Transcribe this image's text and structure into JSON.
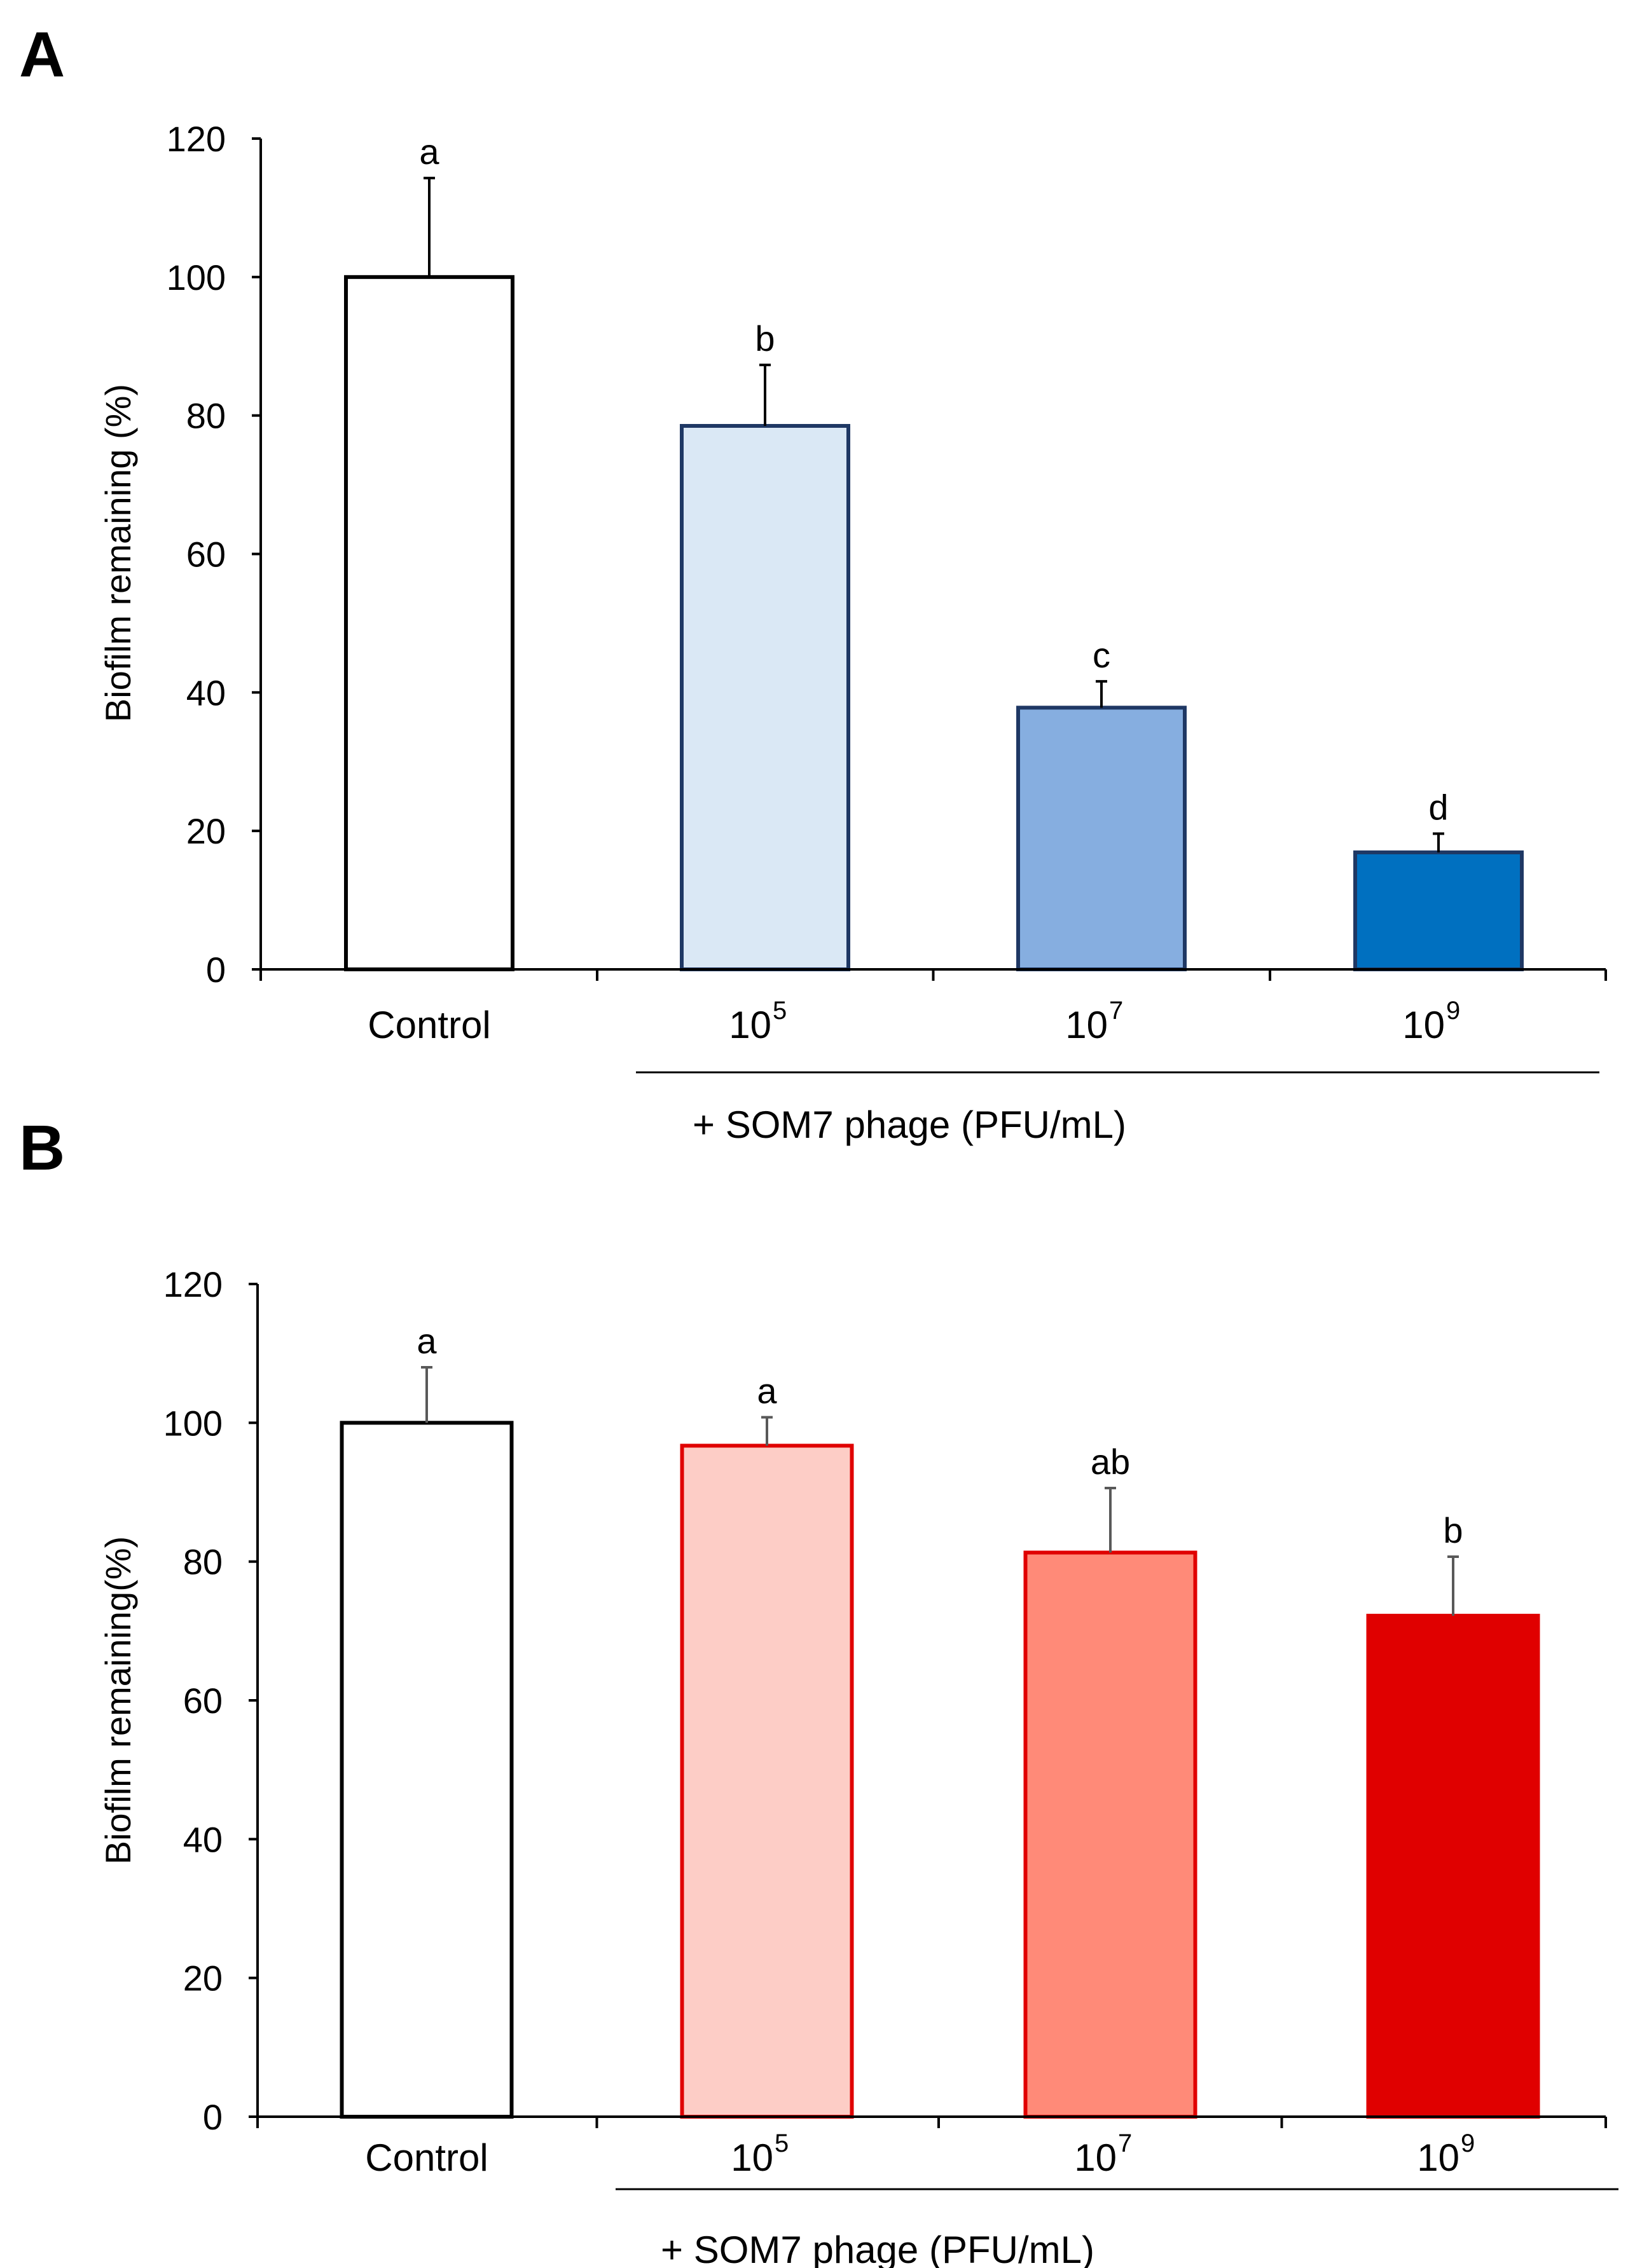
{
  "chart_data": [
    {
      "panel": "A",
      "type": "bar",
      "categories": [
        {
          "base": "Control",
          "sup": ""
        },
        {
          "base": "10",
          "sup": "5"
        },
        {
          "base": "10",
          "sup": "7"
        },
        {
          "base": "10",
          "sup": "9"
        }
      ],
      "values": [
        100,
        78.5,
        37.8,
        16.9
      ],
      "errors": [
        14.3,
        8.8,
        3.8,
        2.7
      ],
      "significance": [
        "a",
        "b",
        "c",
        "d"
      ],
      "colors": [
        "#ffffff",
        "#dae8f5",
        "#86aee0",
        "#0070c0"
      ],
      "edge_colors": [
        "#000000",
        "#1f3864",
        "#1f3864",
        "#1f3864"
      ],
      "error_color": "#000000",
      "ylabel": "Biofilm remaining (%)",
      "ylim": [
        0,
        120
      ],
      "yticks": [
        0,
        20,
        40,
        60,
        80,
        100,
        120
      ],
      "group_label": "+ SOM7 phage (PFU/mL)"
    },
    {
      "panel": "B",
      "type": "bar",
      "categories": [
        {
          "base": "Control",
          "sup": ""
        },
        {
          "base": "10",
          "sup": "5"
        },
        {
          "base": "10",
          "sup": "7"
        },
        {
          "base": "10",
          "sup": "9"
        }
      ],
      "values": [
        100,
        96.7,
        81.3,
        72.2
      ],
      "errors": [
        8.0,
        4.1,
        9.3,
        8.5
      ],
      "significance": [
        "a",
        "a",
        "ab",
        "b"
      ],
      "colors": [
        "#ffffff",
        "#fdcdc6",
        "#ff8a78",
        "#e00000"
      ],
      "edge_colors": [
        "#000000",
        "#e00000",
        "#e00000",
        "#e00000"
      ],
      "error_color": "#595959",
      "ylabel": "Biofilm remaining(%)",
      "ylim": [
        0,
        120
      ],
      "yticks": [
        0,
        20,
        40,
        60,
        80,
        100,
        120
      ],
      "group_label": "+ SOM7 phage (PFU/mL)"
    }
  ]
}
